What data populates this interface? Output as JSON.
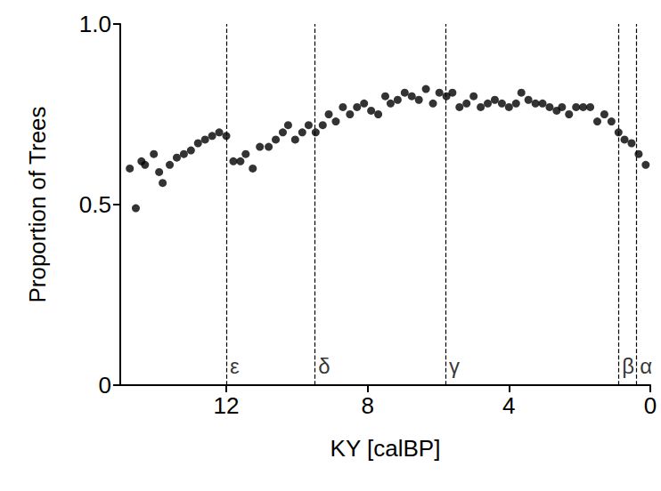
{
  "chart_data": {
    "type": "scatter",
    "x_label": "KY [calBP]",
    "y_label": "Proportion of Trees",
    "color": "#000000",
    "marker": "circle",
    "grid": false,
    "xlim": [
      15,
      0
    ],
    "xticks": [
      12,
      8,
      4,
      0
    ],
    "ylim": [
      0,
      1
    ],
    "yticks": [
      0,
      0.5,
      {
        "value": 1,
        "label": "1.0"
      }
    ],
    "x": [
      14.73,
      14.56,
      14.4,
      14.3,
      14.05,
      13.9,
      13.8,
      13.6,
      13.4,
      13.2,
      13.0,
      12.8,
      12.6,
      12.4,
      12.2,
      12.0,
      11.8,
      11.6,
      11.45,
      11.25,
      11.05,
      10.8,
      10.6,
      10.4,
      10.25,
      10.05,
      9.85,
      9.67,
      9.47,
      9.27,
      9.1,
      8.9,
      8.7,
      8.5,
      8.3,
      8.1,
      7.9,
      7.7,
      7.5,
      7.35,
      7.15,
      6.95,
      6.75,
      6.55,
      6.35,
      6.15,
      5.97,
      5.77,
      5.6,
      5.4,
      5.2,
      5.0,
      4.8,
      4.6,
      4.4,
      4.2,
      4.0,
      3.8,
      3.65,
      3.45,
      3.25,
      3.05,
      2.85,
      2.65,
      2.5,
      2.3,
      2.1,
      1.9,
      1.7,
      1.5,
      1.3,
      1.1,
      0.9,
      0.73,
      0.53,
      0.33,
      0.13
    ],
    "values": [
      0.6,
      0.49,
      0.62,
      0.61,
      0.64,
      0.59,
      0.56,
      0.61,
      0.63,
      0.64,
      0.65,
      0.67,
      0.68,
      0.69,
      0.7,
      0.69,
      0.62,
      0.62,
      0.64,
      0.6,
      0.66,
      0.66,
      0.68,
      0.7,
      0.72,
      0.68,
      0.7,
      0.72,
      0.7,
      0.72,
      0.75,
      0.73,
      0.77,
      0.75,
      0.77,
      0.78,
      0.76,
      0.75,
      0.8,
      0.78,
      0.79,
      0.81,
      0.8,
      0.79,
      0.82,
      0.78,
      0.81,
      0.8,
      0.81,
      0.77,
      0.78,
      0.8,
      0.77,
      0.78,
      0.79,
      0.78,
      0.77,
      0.78,
      0.81,
      0.79,
      0.78,
      0.78,
      0.77,
      0.76,
      0.77,
      0.75,
      0.77,
      0.77,
      0.77,
      0.73,
      0.75,
      0.73,
      0.7,
      0.68,
      0.67,
      0.64,
      0.61
    ],
    "markers": [
      {
        "x": 12.0,
        "label": "ε"
      },
      {
        "x": 9.5,
        "label": "δ"
      },
      {
        "x": 5.8,
        "label": "γ"
      },
      {
        "x": 0.9,
        "label": "β"
      },
      {
        "x": 0.4,
        "label": "α"
      }
    ],
    "marker_line_style": "dashed"
  }
}
